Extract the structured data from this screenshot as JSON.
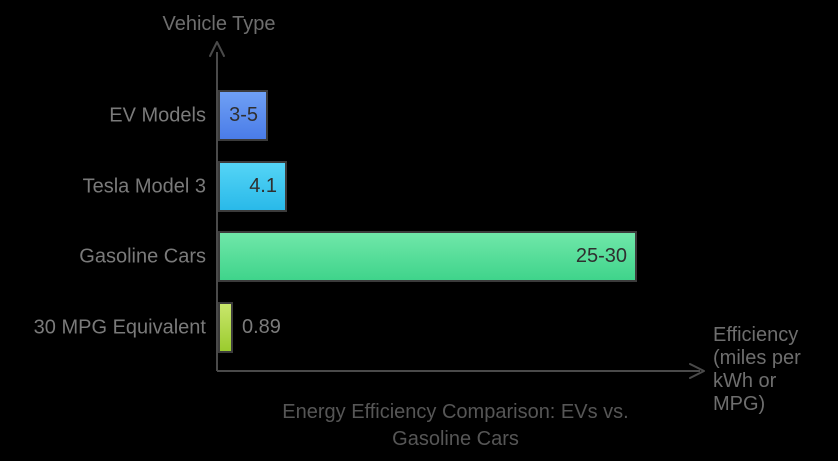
{
  "chart_data": {
    "type": "bar",
    "orientation": "horizontal",
    "title": "Energy Efficiency Comparison: EVs vs. Gasoline Cars",
    "xlabel": "Efficiency (miles per kWh or MPG)",
    "ylabel": "Vehicle Type",
    "xlim": [
      0,
      29
    ],
    "grid": false,
    "legend": false,
    "categories": [
      "EV Models",
      "Tesla Model 3",
      "Gasoline Cars",
      "30 MPG Equivalent"
    ],
    "bars": [
      {
        "category": "EV Models",
        "value": 3,
        "value_high": 5,
        "label": "3-5",
        "color_top": "#6fa0f4",
        "color_bottom": "#4a7ce8"
      },
      {
        "category": "Tesla Model 3",
        "value": 4.1,
        "value_high": 4.1,
        "label": "4.1",
        "color_top": "#55d5f6",
        "color_bottom": "#29b9e9"
      },
      {
        "category": "Gasoline Cars",
        "value": 25,
        "value_high": 30,
        "label": "25-30",
        "color_top": "#70e7a9",
        "color_bottom": "#3fd48b"
      },
      {
        "category": "30 MPG Equivalent",
        "value": 0.89,
        "value_high": 0.89,
        "label": "0.89",
        "color_top": "#c9e76c",
        "color_bottom": "#9bcb2e"
      }
    ]
  },
  "display": {
    "title_lines": "Energy Efficiency Comparison: EVs vs.\nGasoline Cars",
    "xlabel_lines": "Efficiency\n(miles per\nkWh or\nMPG)"
  },
  "colors": {
    "background": "#000000",
    "axis_line": "#4a4a4a",
    "title_text": "#565656",
    "axis_title_text": "#6e6e6e",
    "category_text": "#7a7a7a",
    "bar_border": "#3b3b3b",
    "value_text_inside": "#2f2f2f",
    "value_text_outside": "#7b7b7b"
  }
}
